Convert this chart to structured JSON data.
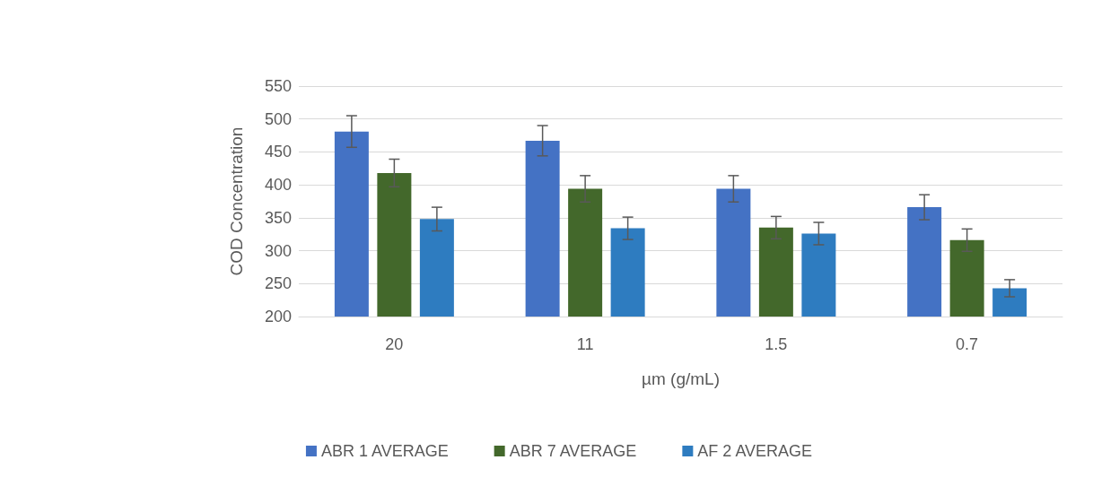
{
  "chart_data": {
    "type": "bar",
    "xlabel": "µm (g/mL)",
    "ylabel": "COD Concentration",
    "categories": [
      "20",
      "11",
      "1.5",
      "0.7"
    ],
    "series": [
      {
        "name": "ABR 1 AVERAGE",
        "color": "#4472c4",
        "values": [
          481,
          467,
          394,
          366
        ],
        "errors": [
          24,
          23,
          20,
          19
        ]
      },
      {
        "name": "ABR 7 AVERAGE",
        "color": "#43682b",
        "values": [
          418,
          394,
          335,
          316
        ],
        "errors": [
          21,
          20,
          17,
          17
        ]
      },
      {
        "name": "AF 2 AVERAGE",
        "color": "#2e7cc0",
        "values": [
          348,
          334,
          326,
          243
        ],
        "errors": [
          18,
          17,
          17,
          13
        ]
      }
    ],
    "ylim": [
      200,
      550
    ],
    "yticks": [
      200,
      250,
      300,
      350,
      400,
      450,
      500,
      550
    ],
    "grid": "y",
    "legend": "bottom"
  }
}
